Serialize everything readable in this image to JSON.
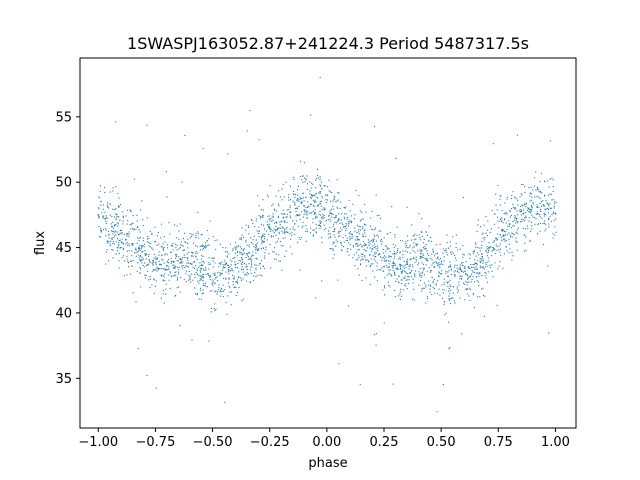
{
  "chart_data": {
    "type": "scatter",
    "title": "1SWASPJ163052.87+241224.3 Period 5487317.5s",
    "xlabel": "phase",
    "ylabel": "flux",
    "xlim": [
      -1.08,
      1.09
    ],
    "ylim": [
      31.2,
      59.5
    ],
    "xticks": [
      -1.0,
      -0.75,
      -0.5,
      -0.25,
      0.0,
      0.25,
      0.5,
      0.75,
      1.0
    ],
    "xtick_labels": [
      "−1.00",
      "−0.75",
      "−0.50",
      "−0.25",
      "0.00",
      "0.25",
      "0.50",
      "0.75",
      "1.00"
    ],
    "yticks": [
      35,
      40,
      45,
      50,
      55
    ],
    "ytick_labels": [
      "35",
      "40",
      "45",
      "50",
      "55"
    ],
    "grid": false,
    "marker_color": "#1f77b4",
    "series": [
      {
        "x": [
          -1.0,
          -0.97,
          -0.94,
          -0.91,
          -0.88,
          -0.85,
          -0.82,
          -0.79,
          -0.76,
          -0.73,
          -0.7,
          -0.67,
          -0.64,
          -0.61,
          -0.58,
          -0.55,
          -0.52,
          -0.49,
          -0.46,
          -0.43,
          -0.4,
          -0.37,
          -0.34,
          -0.31,
          -0.28,
          -0.25,
          -0.22,
          -0.19,
          -0.16,
          -0.13,
          -0.1,
          -0.07,
          -0.04,
          -0.01,
          0.02,
          0.05,
          0.08,
          0.11,
          0.14,
          0.17,
          0.2,
          0.23,
          0.26,
          0.29,
          0.32,
          0.35,
          0.38,
          0.41,
          0.44,
          0.47,
          0.5,
          0.53,
          0.56,
          0.59,
          0.62,
          0.65,
          0.68,
          0.71,
          0.74,
          0.77,
          0.8,
          0.83,
          0.86,
          0.89,
          0.92,
          0.95,
          0.98,
          1.0
        ],
        "y": [
          47.5,
          47.2,
          46.6,
          46.0,
          45.6,
          45.2,
          44.9,
          44.5,
          44.0,
          43.7,
          43.6,
          43.9,
          44.1,
          44.2,
          43.9,
          43.4,
          43.0,
          42.9,
          43.0,
          43.3,
          43.7,
          44.1,
          44.6,
          45.2,
          45.9,
          46.5,
          46.9,
          47.3,
          47.7,
          48.0,
          48.2,
          48.3,
          48.2,
          47.9,
          47.6,
          47.1,
          46.6,
          46.0,
          45.6,
          45.2,
          44.9,
          44.5,
          44.0,
          43.8,
          43.7,
          43.9,
          44.2,
          44.3,
          44.0,
          43.5,
          43.0,
          42.8,
          42.9,
          43.2,
          43.5,
          43.8,
          44.3,
          45.0,
          45.7,
          46.3,
          46.8,
          47.2,
          47.6,
          47.9,
          48.1,
          48.2,
          48.0,
          47.6
        ],
        "spread": [
          2.2,
          2.6,
          2.4,
          2.3,
          2.6,
          2.8,
          2.6,
          2.4,
          2.3,
          2.1,
          2.0,
          2.1,
          2.2,
          2.3,
          2.4,
          2.5,
          2.6,
          2.6,
          2.5,
          2.4,
          2.3,
          2.3,
          2.4,
          2.5,
          2.6,
          2.6,
          2.5,
          2.5,
          2.4,
          2.4,
          2.4,
          2.3,
          2.2,
          2.3,
          2.4,
          2.6,
          2.8,
          2.6,
          2.4,
          2.3,
          2.2,
          2.1,
          2.0,
          2.0,
          2.1,
          2.2,
          2.3,
          2.4,
          2.5,
          2.6,
          2.6,
          2.5,
          2.4,
          2.3,
          2.3,
          2.4,
          2.5,
          2.6,
          2.6,
          2.5,
          2.5,
          2.4,
          2.4,
          2.4,
          2.3,
          2.2,
          2.3,
          2.2
        ]
      }
    ],
    "annotations": []
  }
}
